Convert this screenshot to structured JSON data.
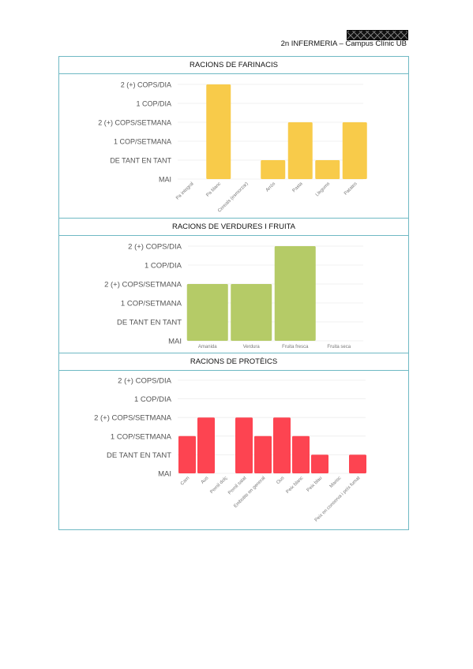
{
  "header": {
    "text": "2n INFERMERIA – Campus Clínic UB"
  },
  "y_levels": [
    "MAI",
    "DE TANT EN TANT",
    "1 COP/SETMANA",
    "2 (+) COPS/SETMANA",
    "1 COP/DIA",
    "2 (+) COPS/DIA"
  ],
  "sections": [
    {
      "title": "RACIONS DE FARINACIS"
    },
    {
      "title": "RACIONS DE VERDURES I FRUITA"
    },
    {
      "title": "RACIONS DE PROTÈICS"
    }
  ],
  "chart_data": [
    {
      "type": "bar",
      "title": "RACIONS DE FARINACIS",
      "categories": [
        "Pa integral",
        "Pa blanc",
        "Cereals (esmorzar)",
        "Arròs",
        "Pasta",
        "Llegums",
        "Patates"
      ],
      "values": [
        0,
        5,
        0,
        1,
        3,
        1,
        3
      ],
      "yticks": [
        "MAI",
        "DE TANT EN TANT",
        "1 COP/SETMANA",
        "2 (+) COPS/SETMANA",
        "1 COP/DIA",
        "2 (+) COPS/DIA"
      ],
      "ylim": [
        0,
        5
      ],
      "color": "#f8cb4a",
      "grid": true
    },
    {
      "type": "bar",
      "title": "RACIONS DE VERDURES I FRUITA",
      "categories": [
        "Amanida",
        "Verdura",
        "Fruita fresca",
        "Fruita seca"
      ],
      "values": [
        3,
        3,
        5,
        0
      ],
      "yticks": [
        "MAI",
        "DE TANT EN TANT",
        "1 COP/SETMANA",
        "2 (+) COPS/SETMANA",
        "1 COP/DIA",
        "2 (+) COPS/DIA"
      ],
      "ylim": [
        0,
        5
      ],
      "color": "#b5cb67",
      "grid": true
    },
    {
      "type": "bar",
      "title": "RACIONS DE PROTÈICS",
      "categories": [
        "Carn",
        "Aus",
        "Pernil dolç",
        "Pernil salat",
        "Embotits en general",
        "Ous",
        "Peix blanc",
        "Peix blau",
        "Marisc",
        "Peix en conserva i peix fumat"
      ],
      "values": [
        2,
        3,
        0,
        3,
        2,
        3,
        2,
        1,
        0,
        1
      ],
      "yticks": [
        "MAI",
        "DE TANT EN TANT",
        "1 COP/SETMANA",
        "2 (+) COPS/SETMANA",
        "1 COP/DIA",
        "2 (+) COPS/DIA"
      ],
      "ylim": [
        0,
        5
      ],
      "color": "#fd4451",
      "grid": true
    }
  ]
}
